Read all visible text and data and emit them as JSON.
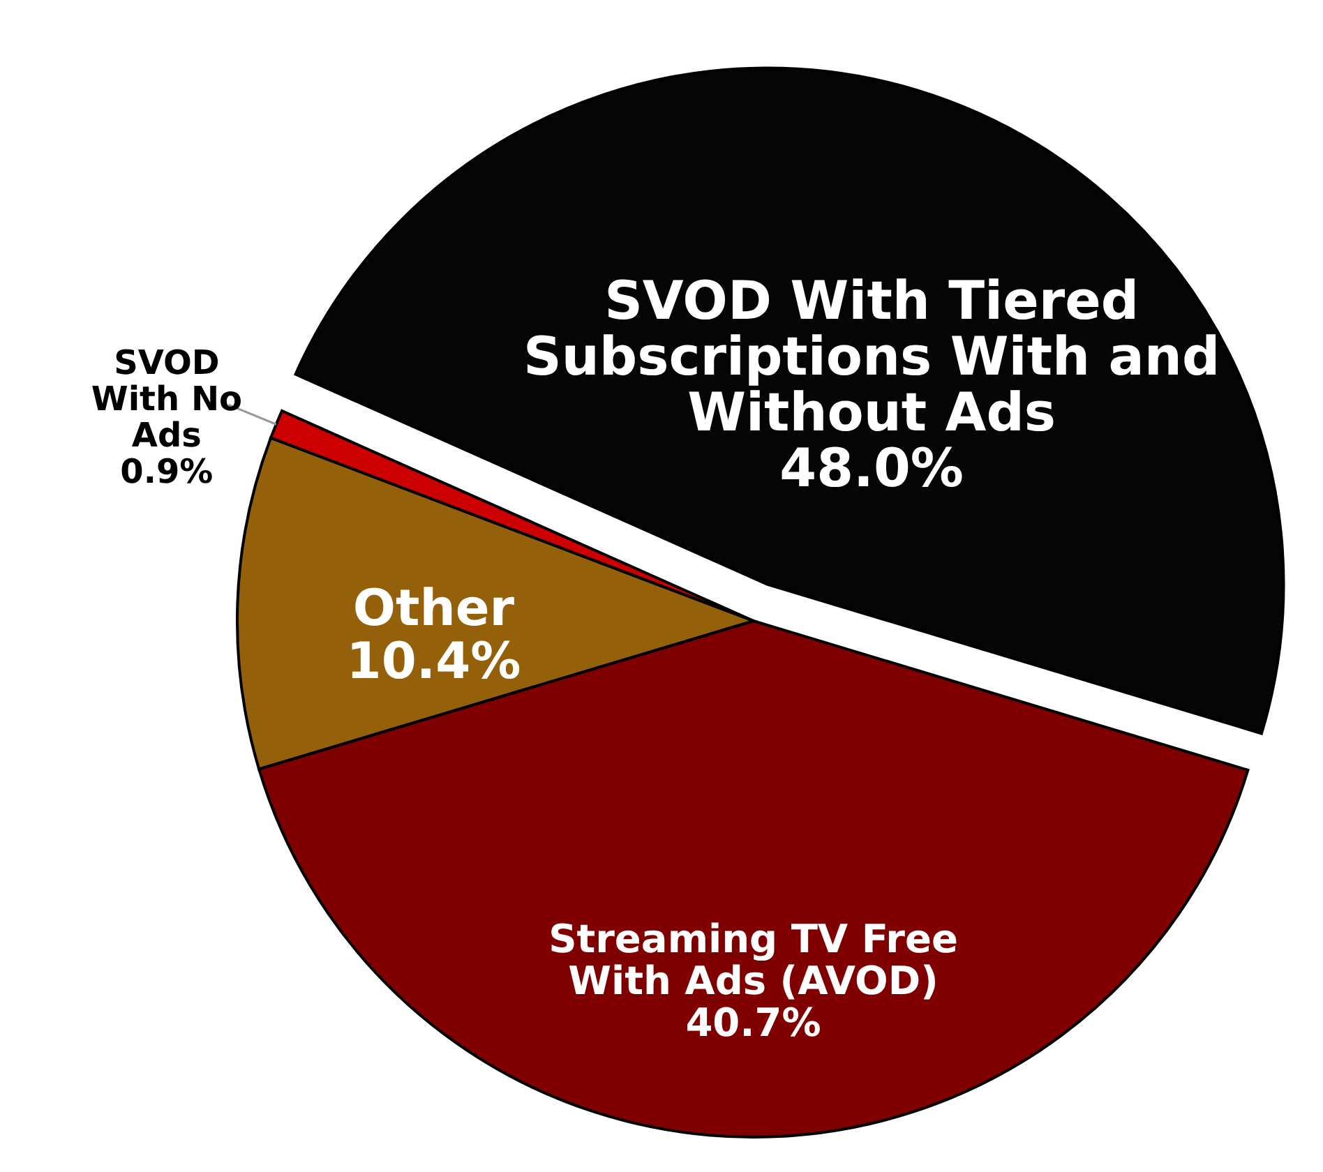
{
  "chart_data": {
    "type": "pie",
    "categories": [
      "SVOD With Tiered Subscriptions With and Without Ads",
      "Streaming TV Free With Ads (AVOD)",
      "Other",
      "SVOD With No Ads"
    ],
    "values": [
      48.0,
      40.7,
      10.4,
      0.9
    ],
    "colors": [
      "#050505",
      "#800000",
      "#94600a",
      "#cc0000"
    ],
    "value_labels": [
      "48.0%",
      "40.7%",
      "10.4%",
      "0.9%"
    ]
  }
}
